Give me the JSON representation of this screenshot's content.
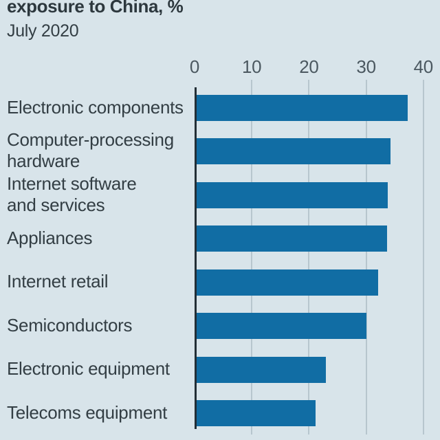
{
  "header": {
    "title": "exposure to China, %",
    "subtitle": "July 2020"
  },
  "chart_data": {
    "type": "bar",
    "orientation": "horizontal",
    "title": "exposure to China, %",
    "subtitle": "July 2020",
    "categories": [
      "Electronic components",
      "Computer-processing hardware",
      "Internet software and services",
      "Appliances",
      "Internet retail",
      "Semiconductors",
      "Electronic equipment",
      "Telecoms equipment"
    ],
    "category_lines": [
      [
        "Electronic components"
      ],
      [
        "Computer-processing",
        "hardware"
      ],
      [
        "Internet software",
        "and services"
      ],
      [
        "Appliances"
      ],
      [
        "Internet retail"
      ],
      [
        "Semiconductors"
      ],
      [
        "Electronic equipment"
      ],
      [
        "Telecoms equipment"
      ]
    ],
    "values": [
      37.3,
      34.2,
      33.8,
      33.6,
      32.1,
      30.1,
      23,
      21.1
    ],
    "unit": "%",
    "x_ticks": [
      0,
      10,
      20,
      30,
      40
    ],
    "xlim": [
      0,
      40
    ],
    "axis_position": "top",
    "grid": "vertical-gridlines",
    "legend": "none",
    "colors": {
      "background": "#d8e4ea",
      "bar": "#116da4",
      "title_text": "#2d383e",
      "label_text": "#333e44",
      "tick_text": "#4b5860",
      "gridline": "#b7c6ce",
      "axis_line": "#222e36"
    }
  }
}
